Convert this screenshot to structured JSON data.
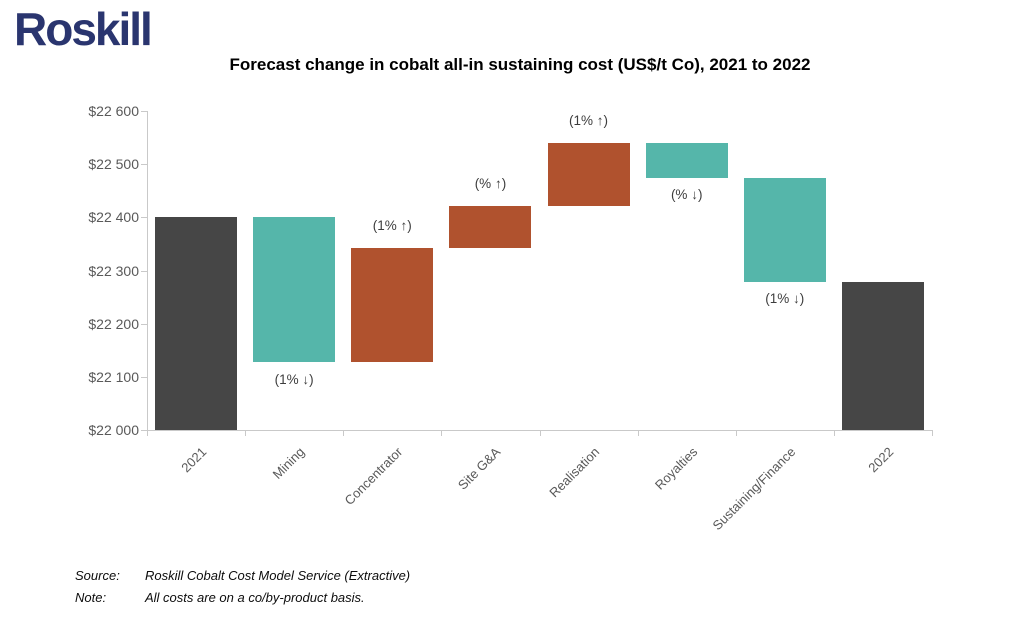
{
  "brand": {
    "logo_text": "Roskill",
    "logo_color": "#2a356f"
  },
  "footer": {
    "source_label": "Source:",
    "source_text": "Roskill Cobalt Cost Model Service (Extractive)",
    "note_label": "Note:",
    "note_text": "All costs are on a co/by-product basis."
  },
  "chart_data": {
    "type": "bar",
    "subtype": "waterfall",
    "title": "Forecast change in cobalt all-in sustaining cost (US$/t Co), 2021 to 2022",
    "xlabel": "",
    "ylabel": "",
    "ylim": [
      22000,
      22600
    ],
    "ytick_step": 100,
    "grid": false,
    "legend": false,
    "currency_unit": "US$/t Co",
    "yticks": [
      {
        "value": 22600,
        "label": "$22 600"
      },
      {
        "value": 22500,
        "label": "$22 500"
      },
      {
        "value": 22400,
        "label": "$22 400"
      },
      {
        "value": 22300,
        "label": "$22 300"
      },
      {
        "value": 22200,
        "label": "$22 200"
      },
      {
        "value": 22100,
        "label": "$22 100"
      },
      {
        "value": 22000,
        "label": "$22 000"
      }
    ],
    "categories": [
      "2021",
      "Mining",
      "Concentrator",
      "Site G&A",
      "Realisation",
      "Royalties",
      "Sustaining/Finance",
      "2022"
    ],
    "colors": {
      "total": "#464646",
      "increase": "#b0522e",
      "decrease": "#55b6aa"
    },
    "bars": [
      {
        "category": "2021",
        "kind": "total",
        "from": 22000,
        "to": 22400,
        "value": 22400,
        "annotation": null
      },
      {
        "category": "Mining",
        "kind": "decrease",
        "from": 22400,
        "to": 22127,
        "change": -273,
        "annotation": "(1% ↓)",
        "annotation_side": "below"
      },
      {
        "category": "Concentrator",
        "kind": "increase",
        "from": 22127,
        "to": 22342,
        "change": 215,
        "annotation": "(1% ↑)",
        "annotation_side": "above"
      },
      {
        "category": "Site G&A",
        "kind": "increase",
        "from": 22342,
        "to": 22422,
        "change": 80,
        "annotation": "(% ↑)",
        "annotation_side": "above"
      },
      {
        "category": "Realisation",
        "kind": "increase",
        "from": 22422,
        "to": 22540,
        "change": 118,
        "annotation": "(1% ↑)",
        "annotation_side": "above"
      },
      {
        "category": "Royalties",
        "kind": "decrease",
        "from": 22540,
        "to": 22474,
        "change": -66,
        "annotation": "(% ↓)",
        "annotation_side": "below"
      },
      {
        "category": "Sustaining/Finance",
        "kind": "decrease",
        "from": 22474,
        "to": 22278,
        "change": -196,
        "annotation": "(1% ↓)",
        "annotation_side": "below"
      },
      {
        "category": "2022",
        "kind": "total",
        "from": 22000,
        "to": 22278,
        "value": 22278,
        "annotation": null
      }
    ]
  }
}
